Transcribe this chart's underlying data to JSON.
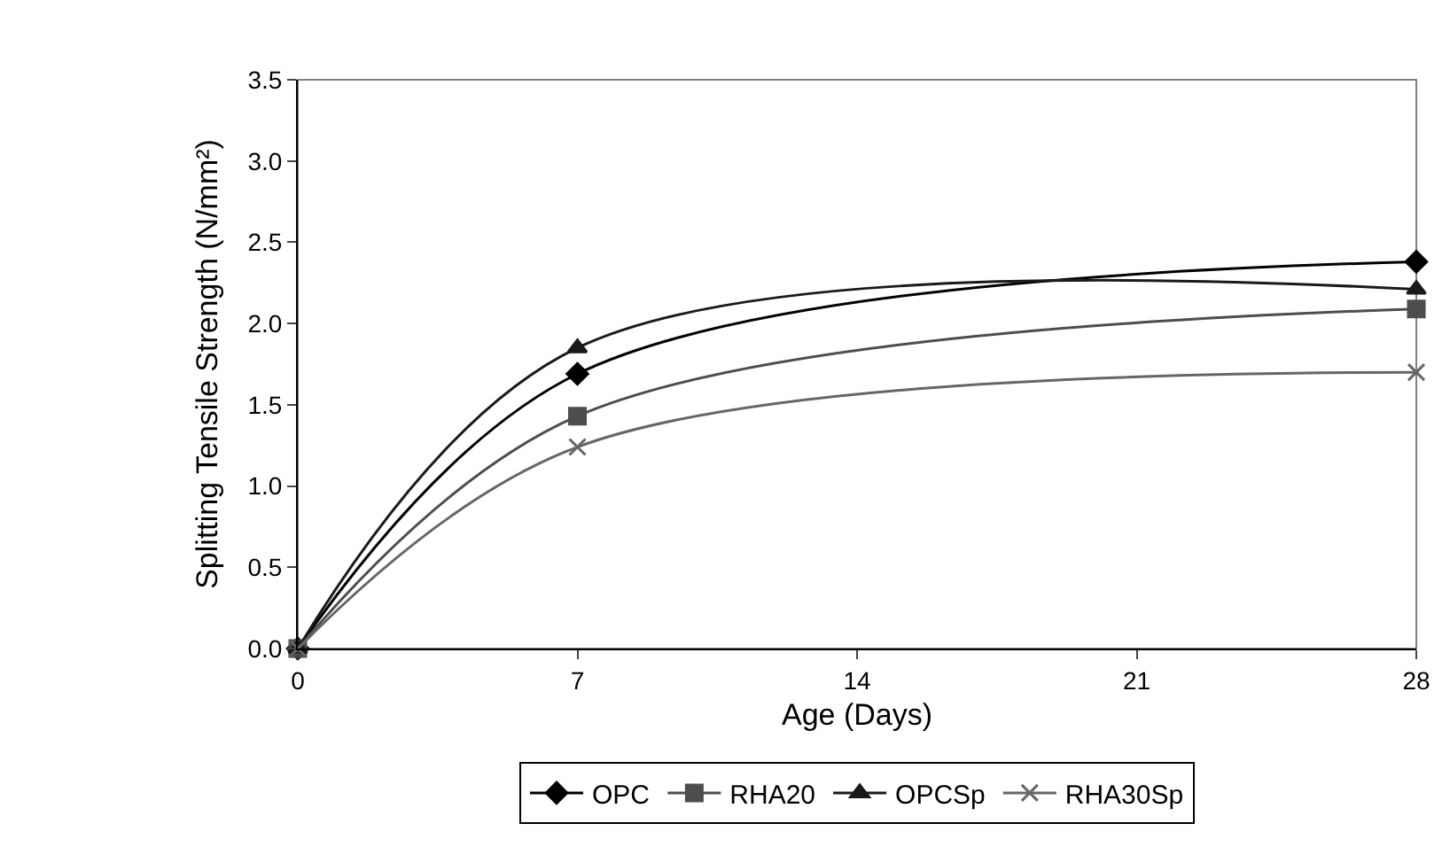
{
  "chart_data": {
    "type": "line",
    "xlabel": "Age (Days)",
    "ylabel": "Splitting Tensile Strength (N/mm²)",
    "x": [
      0,
      7,
      28
    ],
    "series": [
      {
        "name": "OPC",
        "color": "#000000",
        "marker": "diamond",
        "values": [
          0,
          1.69,
          2.38
        ]
      },
      {
        "name": "RHA20",
        "color": "#4d4d4d",
        "marker": "square",
        "values": [
          0,
          1.43,
          2.09
        ]
      },
      {
        "name": "OPCSp",
        "color": "#1a1a1a",
        "marker": "triangle",
        "values": [
          0,
          1.85,
          2.21
        ]
      },
      {
        "name": "RHA30Sp",
        "color": "#666666",
        "marker": "cross",
        "values": [
          0,
          1.24,
          1.7
        ]
      }
    ],
    "xlim": [
      0,
      28
    ],
    "xticks": [
      0,
      7,
      14,
      21,
      28
    ],
    "ylim": [
      0,
      3.5
    ],
    "yticks": [
      {
        "value": 0,
        "label": "0.0"
      },
      {
        "value": 0.5,
        "label": "0.5"
      },
      {
        "value": 1,
        "label": "1.0"
      },
      {
        "value": 1.5,
        "label": "1.5"
      },
      {
        "value": 2,
        "label": "2.0"
      },
      {
        "value": 2.5,
        "label": "2.5"
      },
      {
        "value": 3,
        "label": "3.0"
      },
      {
        "value": 3.5,
        "label": "3.5"
      }
    ],
    "grid": false,
    "legend": "bottom"
  }
}
